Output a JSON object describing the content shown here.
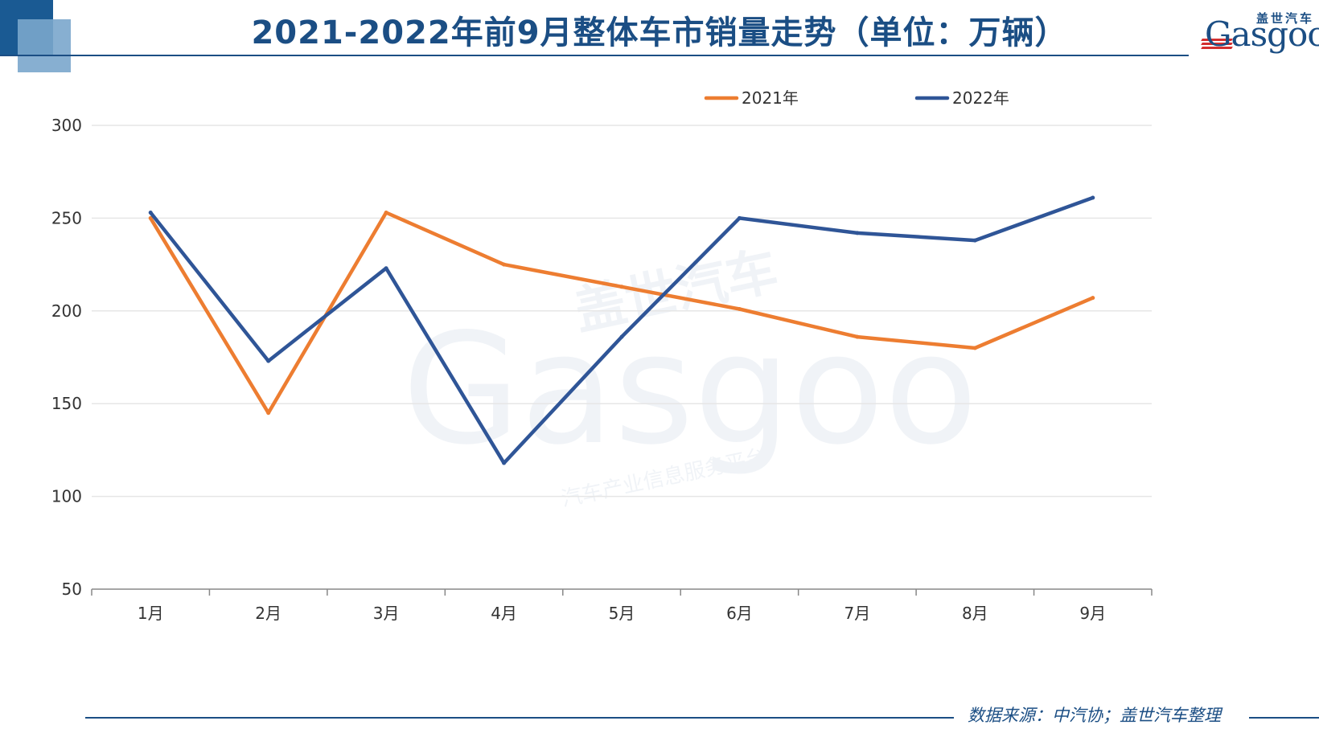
{
  "header": {
    "title": "2021-2022年前9月整体车市销量走势（单位：万辆）"
  },
  "logo": {
    "cn": "盖世汽车",
    "en": "Gasgoo"
  },
  "watermark": {
    "cn": "盖世汽车",
    "en": "Gasgoo",
    "tagline": "汽车产业信息服务平台"
  },
  "footer": {
    "source": "数据来源：中汽协；盖世汽车整理"
  },
  "colors": {
    "accent": "#1b4e84",
    "series_2021": "#ed7d31",
    "series_2022": "#2f5597",
    "grid": "#e6e6e6",
    "axis": "#888888"
  },
  "chart_data": {
    "type": "line",
    "categories": [
      "1月",
      "2月",
      "3月",
      "4月",
      "5月",
      "6月",
      "7月",
      "8月",
      "9月"
    ],
    "series": [
      {
        "name": "2021年",
        "color": "#ed7d31",
        "values": [
          250,
          145,
          253,
          225,
          213,
          201,
          186,
          180,
          207
        ]
      },
      {
        "name": "2022年",
        "color": "#2f5597",
        "values": [
          253,
          173,
          223,
          118,
          186,
          250,
          242,
          238,
          261
        ]
      }
    ],
    "ylim": [
      50,
      300
    ],
    "yticks": [
      50,
      100,
      150,
      200,
      250,
      300
    ],
    "grid": true,
    "legend": "top-center"
  }
}
